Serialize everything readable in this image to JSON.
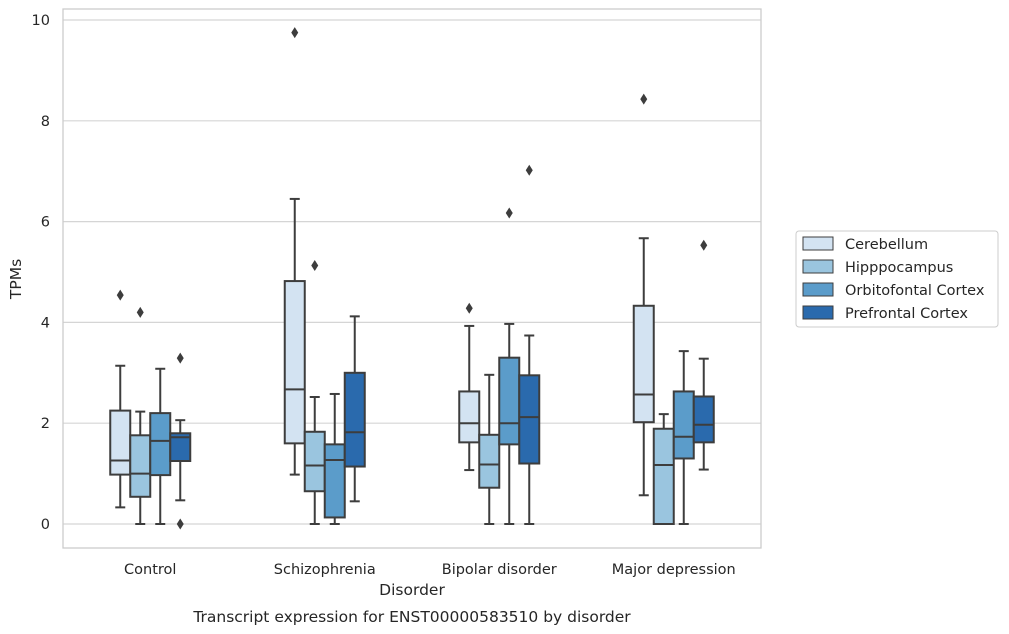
{
  "chart_data": {
    "type": "boxplot",
    "caption": "Transcript expression for ENST00000583510 by disorder",
    "xlabel": "Disorder",
    "ylabel": "TPMs",
    "ylim": [
      -0.45,
      10.22
    ],
    "yticks": [
      "0",
      "2",
      "4",
      "6",
      "8",
      "10"
    ],
    "grid": "horizontal",
    "legend_position": "right",
    "categories": [
      "Control",
      "Schizophrenia",
      "Bipolar disorder",
      "Major depression"
    ],
    "series": [
      {
        "name": "Cerebellum",
        "color": "#d3e3f2",
        "boxes": [
          {
            "whislo": 0.33,
            "q1": 0.98,
            "med": 1.26,
            "q3": 2.25,
            "whishi": 3.14,
            "fliers": [
              4.54
            ]
          },
          {
            "whislo": 0.98,
            "q1": 1.6,
            "med": 2.67,
            "q3": 4.82,
            "whishi": 6.45,
            "fliers": [
              9.75
            ]
          },
          {
            "whislo": 1.07,
            "q1": 1.62,
            "med": 2.0,
            "q3": 2.63,
            "whishi": 3.93,
            "fliers": [
              4.28
            ]
          },
          {
            "whislo": 0.57,
            "q1": 2.02,
            "med": 2.57,
            "q3": 4.33,
            "whishi": 5.67,
            "fliers": [
              8.43
            ]
          }
        ]
      },
      {
        "name": "Hipppocampus",
        "color": "#9ac5df",
        "boxes": [
          {
            "whislo": 0.0,
            "q1": 0.54,
            "med": 1.0,
            "q3": 1.76,
            "whishi": 2.23,
            "fliers": [
              4.2
            ]
          },
          {
            "whislo": 0.0,
            "q1": 0.65,
            "med": 1.16,
            "q3": 1.83,
            "whishi": 2.52,
            "fliers": [
              5.13
            ]
          },
          {
            "whislo": 0.0,
            "q1": 0.72,
            "med": 1.18,
            "q3": 1.77,
            "whishi": 2.96,
            "fliers": []
          },
          {
            "whislo": 0.0,
            "q1": 0.0,
            "med": 1.17,
            "q3": 1.89,
            "whishi": 2.18,
            "fliers": []
          }
        ]
      },
      {
        "name": "Orbitofontal Cortex",
        "color": "#5b9cca",
        "boxes": [
          {
            "whislo": 0.0,
            "q1": 0.97,
            "med": 1.65,
            "q3": 2.2,
            "whishi": 3.08,
            "fliers": []
          },
          {
            "whislo": 0.0,
            "q1": 0.13,
            "med": 1.27,
            "q3": 1.58,
            "whishi": 2.58,
            "fliers": []
          },
          {
            "whislo": 0.0,
            "q1": 1.58,
            "med": 2.0,
            "q3": 3.3,
            "whishi": 3.97,
            "fliers": [
              6.17
            ]
          },
          {
            "whislo": 0.0,
            "q1": 1.3,
            "med": 1.73,
            "q3": 2.63,
            "whishi": 3.43,
            "fliers": []
          }
        ]
      },
      {
        "name": "Prefrontal Cortex",
        "color": "#2a6aad",
        "boxes": [
          {
            "whislo": 0.47,
            "q1": 1.25,
            "med": 1.72,
            "q3": 1.8,
            "whishi": 2.06,
            "fliers": [
              0.0,
              3.29
            ]
          },
          {
            "whislo": 0.45,
            "q1": 1.14,
            "med": 1.82,
            "q3": 3.0,
            "whishi": 4.12,
            "fliers": []
          },
          {
            "whislo": 0.0,
            "q1": 1.2,
            "med": 2.12,
            "q3": 2.95,
            "whishi": 3.74,
            "fliers": [
              7.02
            ]
          },
          {
            "whislo": 1.08,
            "q1": 1.62,
            "med": 1.97,
            "q3": 2.53,
            "whishi": 3.28,
            "fliers": [
              5.53
            ]
          }
        ]
      }
    ]
  }
}
